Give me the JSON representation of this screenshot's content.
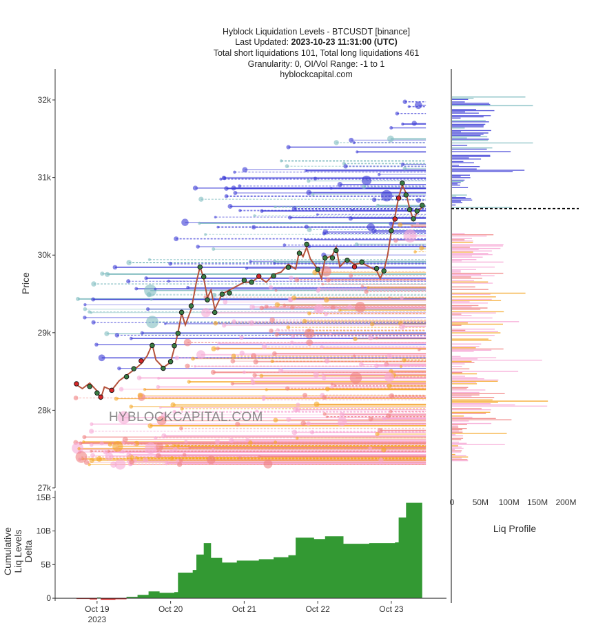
{
  "chart_title": {
    "line1": "Hyblock Liquidation Levels - BTCUSDT [binance]",
    "line2_prefix": "Last Updated: ",
    "line2_bold": "2023-10-23 11:31:00 (UTC)",
    "line3": "Total short liquidations 101, Total long liquidations 461",
    "line4": "Granularity: 0, OI/Vol Range: -1 to 1",
    "line5": "hyblockcapital.com"
  },
  "watermark": "HYBLOCKCAPITAL.COM",
  "colors": {
    "short_liq": "#3b3bd6",
    "short_liq_light": "#7fbcc0",
    "long_liq": "#f08080",
    "long_liq_orange": "#f5a623",
    "long_liq_pink": "#f7a8d6",
    "delta_positive": "#339933",
    "delta_negative": "#d62728",
    "candle_up": "#3a7d44",
    "candle_down": "#c0504d",
    "current_price_line": "#000000"
  },
  "chart_data": [
    {
      "type": "line",
      "title": "Hyblock Liquidation Levels - BTCUSDT [binance]",
      "ylabel": "Price",
      "ylim": [
        27000,
        32400
      ],
      "yticks": [
        {
          "value": 27000,
          "label": "27k"
        },
        {
          "value": 28000,
          "label": "28k"
        },
        {
          "value": 29000,
          "label": "29k"
        },
        {
          "value": 30000,
          "label": "30k"
        },
        {
          "value": 31000,
          "label": "31k"
        },
        {
          "value": 32000,
          "label": "32k"
        }
      ],
      "xlim": [
        18.43,
        23.75
      ],
      "price_series": [
        [
          18.72,
          28330
        ],
        [
          18.8,
          28280
        ],
        [
          18.9,
          28350
        ],
        [
          19.0,
          28250
        ],
        [
          19.05,
          28150
        ],
        [
          19.1,
          28300
        ],
        [
          19.2,
          28260
        ],
        [
          19.3,
          28380
        ],
        [
          19.4,
          28450
        ],
        [
          19.5,
          28520
        ],
        [
          19.6,
          28600
        ],
        [
          19.68,
          28700
        ],
        [
          19.75,
          28850
        ],
        [
          19.8,
          28650
        ],
        [
          19.9,
          28550
        ],
        [
          20.0,
          28620
        ],
        [
          20.05,
          28800
        ],
        [
          20.1,
          29000
        ],
        [
          20.15,
          29250
        ],
        [
          20.2,
          29100
        ],
        [
          20.28,
          29300
        ],
        [
          20.35,
          29650
        ],
        [
          20.4,
          29850
        ],
        [
          20.45,
          29700
        ],
        [
          20.5,
          29450
        ],
        [
          20.55,
          29550
        ],
        [
          20.6,
          29300
        ],
        [
          20.7,
          29500
        ],
        [
          20.8,
          29550
        ],
        [
          20.9,
          29600
        ],
        [
          21.0,
          29650
        ],
        [
          21.1,
          29650
        ],
        [
          21.2,
          29720
        ],
        [
          21.3,
          29650
        ],
        [
          21.4,
          29750
        ],
        [
          21.5,
          29780
        ],
        [
          21.6,
          29880
        ],
        [
          21.7,
          29820
        ],
        [
          21.75,
          30050
        ],
        [
          21.8,
          29980
        ],
        [
          21.85,
          30100
        ],
        [
          21.9,
          29950
        ],
        [
          22.0,
          29820
        ],
        [
          22.05,
          29700
        ],
        [
          22.1,
          29950
        ],
        [
          22.2,
          30000
        ],
        [
          22.25,
          30100
        ],
        [
          22.3,
          29850
        ],
        [
          22.4,
          29950
        ],
        [
          22.5,
          29880
        ],
        [
          22.6,
          29900
        ],
        [
          22.7,
          29850
        ],
        [
          22.8,
          29800
        ],
        [
          22.85,
          29700
        ],
        [
          22.9,
          29800
        ],
        [
          22.95,
          30000
        ],
        [
          23.0,
          30300
        ],
        [
          23.05,
          30500
        ],
        [
          23.1,
          30750
        ],
        [
          23.15,
          30900
        ],
        [
          23.2,
          30800
        ],
        [
          23.25,
          30600
        ],
        [
          23.3,
          30450
        ],
        [
          23.35,
          30550
        ],
        [
          23.42,
          30620
        ]
      ],
      "current_price": 30600
    },
    {
      "type": "bar",
      "title": "Liq Profile",
      "xlabel": "Liq Profile",
      "xlim": [
        0,
        220000000
      ],
      "xticks": [
        {
          "value": 0,
          "label": "0"
        },
        {
          "value": 50000000,
          "label": "50M"
        },
        {
          "value": 100000000,
          "label": "100M"
        },
        {
          "value": 150000000,
          "label": "150M"
        },
        {
          "value": 200000000,
          "label": "200M"
        }
      ]
    },
    {
      "type": "area",
      "ylabel": "Cumulative Liq Levels Delta",
      "ylim": [
        -400000000,
        16000000000
      ],
      "yticks": [
        {
          "value": 0,
          "label": "0"
        },
        {
          "value": 5000000000,
          "label": "5B"
        },
        {
          "value": 10000000000,
          "label": "10B"
        },
        {
          "value": 15000000000,
          "label": "15B"
        }
      ],
      "xticks": [
        {
          "value": 19,
          "label": "Oct 19",
          "sub": "2023"
        },
        {
          "value": 20,
          "label": "Oct 20",
          "sub": ""
        },
        {
          "value": 21,
          "label": "Oct 21",
          "sub": ""
        },
        {
          "value": 22,
          "label": "Oct 22",
          "sub": ""
        },
        {
          "value": 23,
          "label": "Oct 23",
          "sub": ""
        }
      ],
      "delta_series": [
        [
          18.72,
          -100000000.0
        ],
        [
          18.9,
          -200000000.0
        ],
        [
          19.0,
          100000000.0
        ],
        [
          19.05,
          -250000000.0
        ],
        [
          19.25,
          -150000000.0
        ],
        [
          19.4,
          200000000.0
        ],
        [
          19.55,
          500000000.0
        ],
        [
          19.7,
          1000000000.0
        ],
        [
          19.85,
          800000000.0
        ],
        [
          20.05,
          900000000.0
        ],
        [
          20.1,
          3800000000.0
        ],
        [
          20.3,
          4200000000.0
        ],
        [
          20.35,
          6500000000.0
        ],
        [
          20.45,
          8200000000.0
        ],
        [
          20.55,
          6000000000.0
        ],
        [
          20.7,
          5300000000.0
        ],
        [
          20.9,
          5600000000.0
        ],
        [
          21.2,
          5800000000.0
        ],
        [
          21.4,
          6100000000.0
        ],
        [
          21.6,
          6400000000.0
        ],
        [
          21.7,
          9000000000.0
        ],
        [
          21.95,
          8800000000.0
        ],
        [
          22.1,
          9200000000.0
        ],
        [
          22.35,
          8100000000.0
        ],
        [
          22.7,
          8200000000.0
        ],
        [
          23.05,
          8300000000.0
        ],
        [
          23.1,
          12000000000.0
        ],
        [
          23.2,
          14200000000.0
        ],
        [
          23.42,
          13800000000.0
        ]
      ]
    }
  ]
}
